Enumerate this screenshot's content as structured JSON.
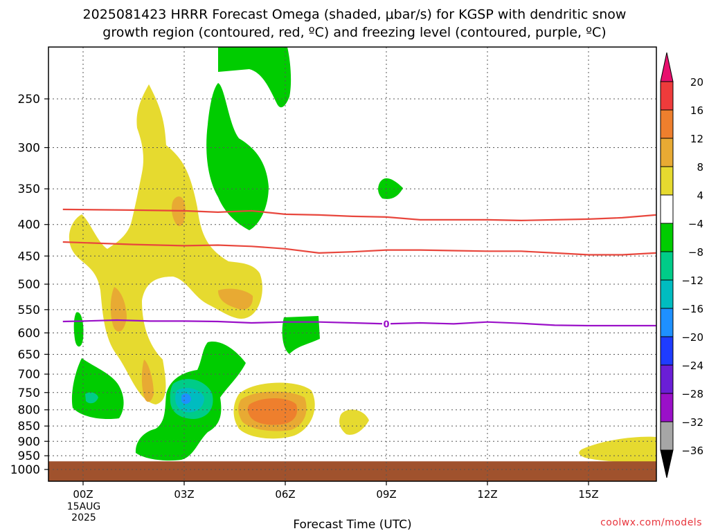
{
  "title_line1": "2025081423 HRRR Forecast Omega (shaded, μbar/s) for KGSP with dendritic snow",
  "title_line2": "growth region (contoured, red, ºC) and freezing level (contoured, purple, ºC)",
  "credit": "coolwx.com/models",
  "chart_data": {
    "type": "time-height contour",
    "xlabel": "Forecast Time (UTC)",
    "x_ticks": [
      "00Z",
      "03Z",
      "06Z",
      "09Z",
      "12Z",
      "15Z"
    ],
    "x_tick_hours": [
      0,
      3,
      6,
      9,
      12,
      15
    ],
    "xlim_hours": [
      -0.6,
      17
    ],
    "x_date_label": [
      "15AUG",
      "2025"
    ],
    "y_ticks": [
      250,
      300,
      350,
      400,
      450,
      500,
      550,
      600,
      650,
      700,
      750,
      800,
      850,
      900,
      950,
      1000
    ],
    "y_tick_labels": [
      "250",
      "300",
      "350",
      "400",
      "450",
      "500",
      "550",
      "600",
      "650",
      "700",
      "750",
      "800",
      "850",
      "900",
      "950",
      "1000"
    ],
    "y_scale": "log pressure (hPa), inverted",
    "grid": true,
    "colorbar": {
      "labels": [
        "20",
        "16",
        "12",
        "8",
        "4",
        "−4",
        "−8",
        "−12",
        "−16",
        "−20",
        "−24",
        "−28",
        "−32",
        "−36"
      ],
      "colors_top_to_bottom": [
        "#e8106e",
        "#ee3b3b",
        "#ee7f2d",
        "#e8aa33",
        "#e6da2f",
        "#ffffff",
        "#00cc00",
        "#00cc88",
        "#00bcc0",
        "#1e90ff",
        "#1e3cff",
        "#6a1ed6",
        "#9a10c8",
        "#a6a6a6",
        "#000000"
      ]
    },
    "series": [
      {
        "name": "dendritic growth region",
        "color": "#e8463c",
        "level_c": [
          -12,
          -17
        ],
        "hours": [
          -0.6,
          1.5,
          3,
          4,
          5,
          6,
          7,
          8,
          9,
          10,
          11,
          12,
          13,
          14,
          15,
          16,
          17
        ]
      },
      {
        "name": "freezing level",
        "color": "#9a10c8",
        "label": "0",
        "hours": [
          -0.6,
          0,
          1,
          2,
          3,
          4,
          5,
          6,
          7,
          8,
          9,
          10,
          11,
          12,
          13,
          14,
          15,
          16,
          17
        ],
        "pressure_hpa": [
          575,
          574,
          572,
          574,
          574,
          575,
          578,
          576,
          576,
          578,
          580,
          578,
          580,
          576,
          579,
          583,
          584,
          584,
          584
        ],
        "label_hour": 9
      }
    ],
    "dgz_upper_hpa": [
      378,
      379,
      380,
      382,
      380,
      385,
      386,
      388,
      389,
      393,
      393,
      393,
      394,
      393,
      392,
      390,
      386
    ],
    "dgz_lower_hpa": [
      427,
      431,
      433,
      432,
      434,
      438,
      445,
      443,
      440,
      440,
      441,
      442,
      442,
      445,
      448,
      448,
      445
    ],
    "surface_pressure_hpa": 970
  }
}
